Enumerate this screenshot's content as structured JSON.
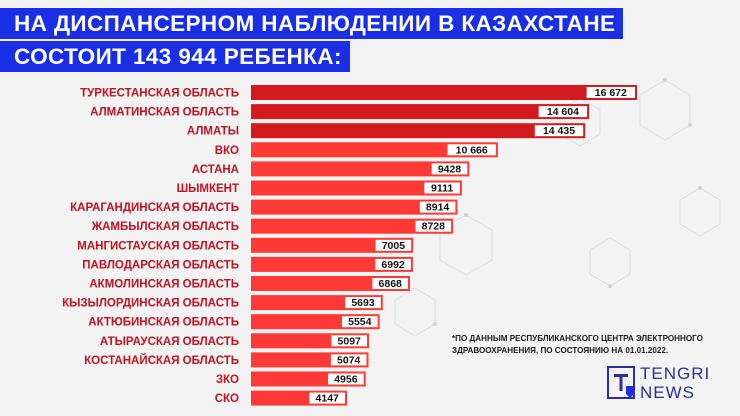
{
  "header": {
    "title_line1": "НА ДИСПАНСЕРНОМ НАБЛЮДЕНИИ В КАЗАХСТАНЕ",
    "title_line2_pre": "СОСТОИТ ",
    "title_line2_num": "143 944",
    "title_line2_post": " РЕБЕНКА:"
  },
  "footnote": "*ПО ДАННЫМ РЕСПУБЛИКАНСКОГО ЦЕНТРА ЭЛЕКТРОННОГО ЗДРАВООХРАНЕНИЯ, ПО СОСТОЯНИЮ НА 01.01.2022.",
  "logo": {
    "line1": "TENGRI",
    "line2": "NEWS",
    "icon": "tengri-logo-icon"
  },
  "colors": {
    "title_bg": "#1a2ee6",
    "bar": "#ff3a36",
    "bar_dark": "#d21a1f",
    "label": "#c1121f",
    "logo": "#2a2f9a"
  },
  "chart_data": {
    "type": "bar",
    "orientation": "horizontal",
    "categories": [
      "ТУРКЕСТАНСКАЯ ОБЛАСТЬ",
      "АЛМАТИНСКАЯ ОБЛАСТЬ",
      "АЛМАТЫ",
      "ВКО",
      "АСТАНА",
      "ШЫМКЕНТ",
      "КАРАГАНДИНСКАЯ ОБЛАСТЬ",
      "ЖАМБЫЛСКАЯ ОБЛАСТЬ",
      "МАНГИСТАУСКАЯ ОБЛАСТЬ",
      "ПАВЛОДАРСКАЯ ОБЛАСТЬ",
      "АКМОЛИНСКАЯ ОБЛАСТЬ",
      "КЫЗЫЛОРДИНСКАЯ ОБЛАСТЬ",
      "АКТЮБИНСКАЯ ОБЛАСТЬ",
      "АТЫРАУСКАЯ ОБЛАСТЬ",
      "КОСТАНАЙСКАЯ ОБЛАСТЬ",
      "ЗКО",
      "СКО"
    ],
    "values": [
      16672,
      14604,
      14435,
      10666,
      9428,
      9111,
      8914,
      8728,
      7005,
      6992,
      6868,
      5693,
      5554,
      5097,
      5074,
      4956,
      4147
    ],
    "value_labels": [
      "16 672",
      "14 604",
      "14 435",
      "10 666",
      "9428",
      "9111",
      "8914",
      "8728",
      "7005",
      "6992",
      "6868",
      "5693",
      "5554",
      "5097",
      "5074",
      "4956",
      "4147"
    ],
    "xlim": [
      0,
      16672
    ],
    "grid": false,
    "legend": "none"
  }
}
